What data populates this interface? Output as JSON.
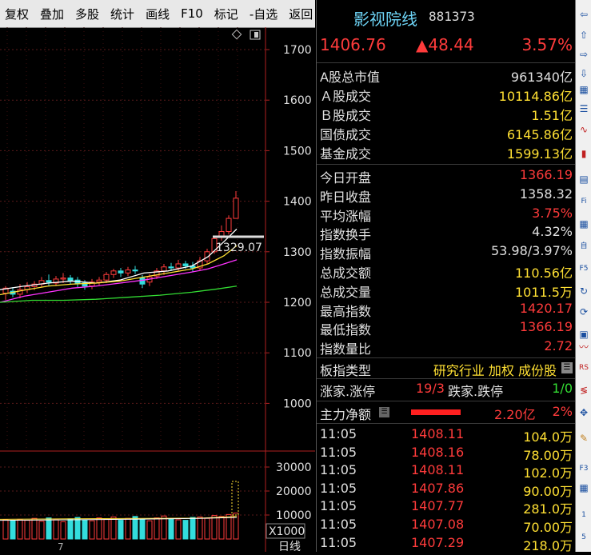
{
  "toolbar": {
    "items": [
      "复权",
      "叠加",
      "多股",
      "统计",
      "画线",
      "F10",
      "标记",
      "-自选",
      "返回"
    ]
  },
  "chart": {
    "price_axis": [
      "1700",
      "1600",
      "1500",
      "1400",
      "1300",
      "1200",
      "1100",
      "1000"
    ],
    "last_low_label": "1329.07",
    "volume_axis": [
      "30000",
      "20000",
      "10000"
    ],
    "volume_unit": "X1000",
    "period_label": "日线",
    "month_label": "7"
  },
  "colors": {
    "up": "#ff3b3b",
    "down": "#33dddd",
    "ma5": "#ffffff",
    "ma10": "#ffe033",
    "ma20": "#ff33ff",
    "ma60": "#33dd33"
  },
  "panel": {
    "name": "影视院线",
    "code": "881373",
    "price": "1406.76",
    "change": "▲48.44",
    "pct": "3.57%",
    "market": [
      {
        "label": "A股总市值",
        "value": "961340亿",
        "color": "wht"
      },
      {
        "label": "Ａ股成交",
        "value": "10114.86亿",
        "color": "yel"
      },
      {
        "label": "Ｂ股成交",
        "value": "1.51亿",
        "color": "yel"
      },
      {
        "label": "国债成交",
        "value": "6145.86亿",
        "color": "yel"
      },
      {
        "label": "基金成交",
        "value": "1599.13亿",
        "color": "yel"
      }
    ],
    "stats": [
      {
        "label": "今日开盘",
        "value": "1366.19",
        "color": "red"
      },
      {
        "label": "昨日收盘",
        "value": "1358.32",
        "color": "wht"
      },
      {
        "label": "平均涨幅",
        "value": "3.75%",
        "color": "red"
      },
      {
        "label": "指数换手",
        "value": "4.32%",
        "color": "wht"
      },
      {
        "label": "指数振幅",
        "value": "53.98/3.97%",
        "color": "wht"
      },
      {
        "label": "总成交额",
        "value": "110.56亿",
        "color": "yel"
      },
      {
        "label": "总成交量",
        "value": "1011.5万",
        "color": "yel"
      },
      {
        "label": "最高指数",
        "value": "1420.17",
        "color": "red"
      },
      {
        "label": "最低指数",
        "value": "1366.19",
        "color": "red"
      },
      {
        "label": "指数量比",
        "value": "2.72",
        "color": "red"
      }
    ],
    "type_label": "板指类型",
    "type_value": "研究行业 加权 成份股",
    "updown_label": "涨家.涨停",
    "updown_value": "19/3",
    "down_label": "跌家.跌停",
    "down_value": "1/0",
    "main_label": "主力净额",
    "main_value": "2.20亿",
    "main_pct": "2%",
    "ticks": [
      {
        "time": "11:05",
        "price": "1408.11",
        "vol": "104.0万"
      },
      {
        "time": "11:05",
        "price": "1408.16",
        "vol": "78.00万"
      },
      {
        "time": "11:05",
        "price": "1408.11",
        "vol": "102.0万"
      },
      {
        "time": "11:05",
        "price": "1407.86",
        "vol": "90.00万"
      },
      {
        "time": "11:05",
        "price": "1407.77",
        "vol": "281.0万"
      },
      {
        "time": "11:05",
        "price": "1407.08",
        "vol": "70.00万"
      },
      {
        "time": "11:05",
        "price": "1407.29",
        "vol": "218.0万"
      }
    ]
  }
}
